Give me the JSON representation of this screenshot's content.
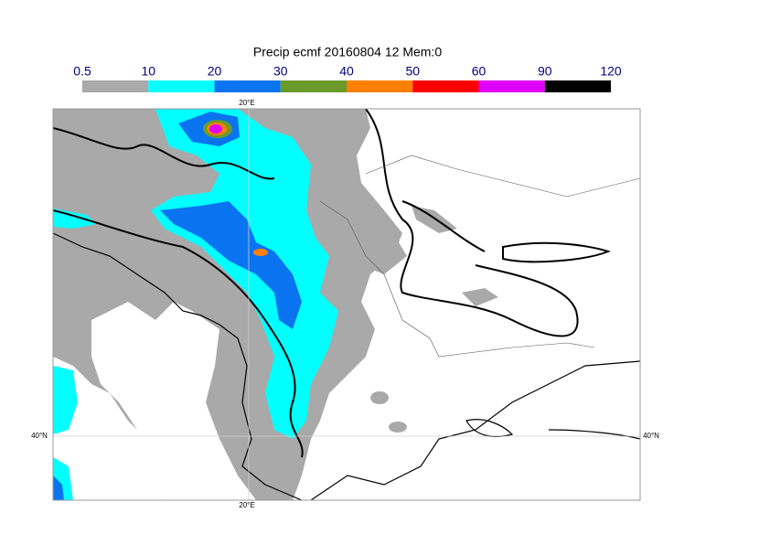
{
  "map": {
    "title": "Precip ecmf 20160804 12 Mem:0",
    "colorbar": {
      "bins": [
        0.5,
        10,
        20,
        30,
        40,
        50,
        60,
        90,
        120
      ],
      "colors": [
        "#a9a9a9",
        "#00ffff",
        "#0a74f0",
        "#6b9a2b",
        "#ff8000",
        "#ff0000",
        "#e000ff",
        "#000000"
      ]
    },
    "grid": {
      "lon_label": "20°E",
      "lat_label": "40°N"
    }
  }
}
